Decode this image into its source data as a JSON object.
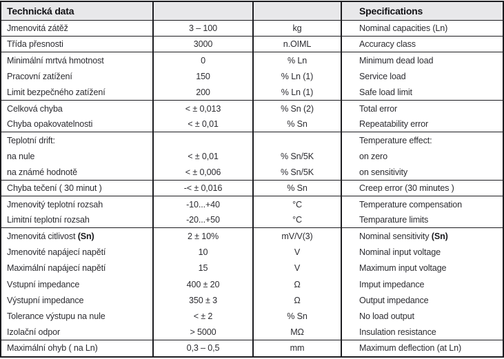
{
  "colors": {
    "header_bg": "#e8e8ea",
    "border": "#1c1c20",
    "text": "#2c2c31"
  },
  "header": {
    "czech": "Technická data",
    "english": "Specifications"
  },
  "rows": [
    {
      "cz": "Jmenovitá zátěž",
      "val": "3 – 100",
      "unit": "kg",
      "en": "Nominal capacities (Ln)"
    },
    {
      "cz": "Třída přesnosti",
      "val": "3000",
      "unit": "n.OIML",
      "en": "Accuracy class"
    },
    {
      "cz": "Minimální mrtvá hmotnost",
      "val": "0",
      "unit": "% Ln",
      "en": "Minimum dead load"
    },
    {
      "cz": "Pracovní zatížení",
      "val": "150",
      "unit": "% Ln (1)",
      "en": "Service load"
    },
    {
      "cz": "Limit bezpečného zatížení",
      "val": "200",
      "unit": "% Ln (1)",
      "en": "Safe load limit"
    },
    {
      "cz": "Celková chyba",
      "val": "< ± 0,013",
      "unit": "% Sn (2)",
      "en": "Total error"
    },
    {
      "cz": "Chyba opakovatelnosti",
      "val": "< ± 0,01",
      "unit": "% Sn",
      "en": "Repeatability error"
    },
    {
      "cz": "Teplotní drift:",
      "val": "",
      "unit": "",
      "en": "Temperature effect:"
    },
    {
      "cz": "na nule",
      "val": "< ± 0,01",
      "unit": "% Sn/5K",
      "en": "on zero"
    },
    {
      "cz": "na známé hodnotě",
      "val": "< ± 0,006",
      "unit": "% Sn/5K",
      "en": "on sensitivity"
    },
    {
      "cz": "Chyba tečení ( 30 minut )",
      "val": "-< ± 0,016",
      "unit": "% Sn",
      "en": "Creep error (30 minutes )"
    },
    {
      "cz": "Jmenovitý teplotní rozsah",
      "val": "-10...+40",
      "unit": "°C",
      "en": "Temperature compensation"
    },
    {
      "cz": "Limitní teplotní rozsah",
      "val": "-20...+50",
      "unit": "°C",
      "en": "Temparature limits"
    },
    {
      "cz": "Jmenovitá citlivost ",
      "cz_b": "(Sn)",
      "val": "2 ± 10%",
      "unit": "mV/V(3)",
      "en": "Nominal sensitivity ",
      "en_b": "(Sn)"
    },
    {
      "cz": "Jmenovité napájecí napětí",
      "val": "10",
      "unit": "V",
      "en": "Nominal input voltage"
    },
    {
      "cz": "Maximální napájecí napětí",
      "val": "15",
      "unit": "V",
      "en": "Maximum input voltage"
    },
    {
      "cz": "Vstupní impedance",
      "val": "400 ± 20",
      "unit": "Ω",
      "en": "Imput impedance"
    },
    {
      "cz": "Výstupní impedance",
      "val": "350 ± 3",
      "unit": "Ω",
      "en": "Output impedance"
    },
    {
      "cz": "Tolerance výstupu na nule",
      "val": "< ± 2",
      "unit": "% Sn",
      "en": "No load output"
    },
    {
      "cz": "Izolační odpor",
      "val": "> 5000",
      "unit": "MΩ",
      "en": "Insulation resistance"
    },
    {
      "cz": "Maximální ohyb ( na Ln)",
      "val": "0,3 – 0,5",
      "unit": "mm",
      "en": "Maximum deflection (at Ln)"
    }
  ]
}
